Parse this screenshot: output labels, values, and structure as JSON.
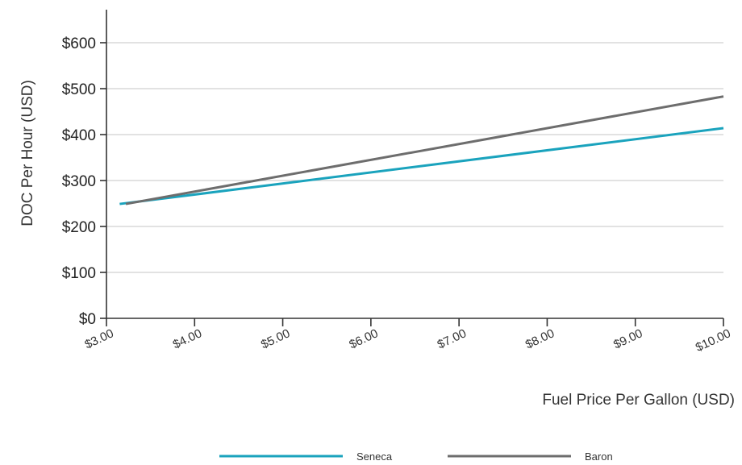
{
  "chart_data": {
    "type": "line",
    "title": "",
    "xlabel": "Fuel Price Per Gallon (USD)",
    "ylabel": "DOC Per Hour (USD)",
    "xlim": [
      3,
      10
    ],
    "ylim": [
      0,
      600
    ],
    "x_ticks": [
      3,
      4,
      5,
      6,
      7,
      8,
      9,
      10
    ],
    "x_tick_labels": [
      "$3.00",
      "$4.00",
      "$5.00",
      "$6.00",
      "$7.00",
      "$8.00",
      "$9.00",
      "$10.00"
    ],
    "y_ticks": [
      0,
      100,
      200,
      300,
      400,
      500,
      600
    ],
    "y_tick_labels": [
      "$0",
      "$100",
      "$200",
      "$300",
      "$400",
      "$500",
      "$600"
    ],
    "grid": true,
    "legend_position": "bottom",
    "series": [
      {
        "name": "Seneca",
        "color": "#1aa3bd",
        "x": [
          3.15,
          10.0
        ],
        "y": [
          249,
          414
        ]
      },
      {
        "name": "Baron",
        "color": "#6d6d6d",
        "x": [
          3.22,
          10.0
        ],
        "y": [
          249,
          483
        ]
      }
    ]
  }
}
